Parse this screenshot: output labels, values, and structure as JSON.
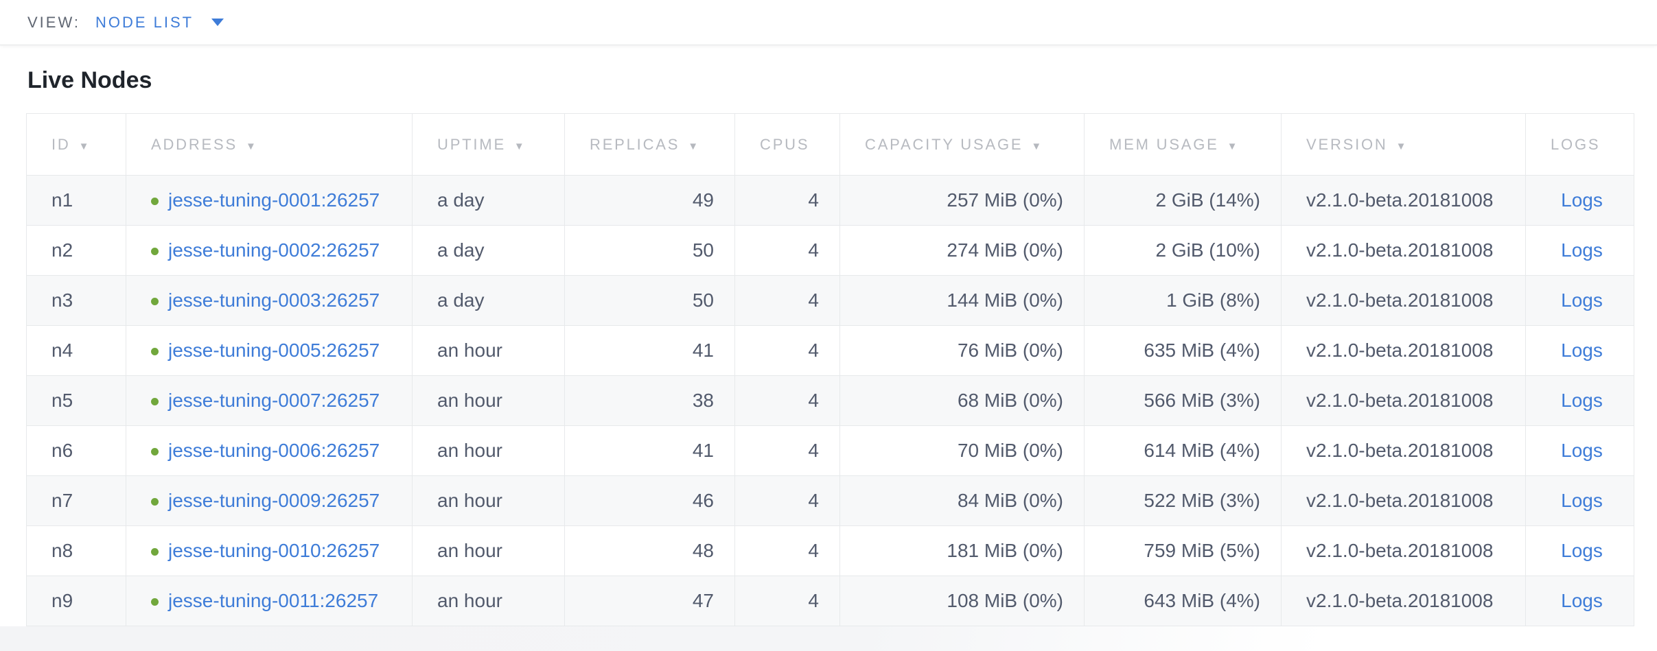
{
  "view_bar": {
    "label": "VIEW:",
    "selected": "NODE LIST"
  },
  "page": {
    "title": "Live Nodes"
  },
  "table": {
    "columns": [
      {
        "label": "ID",
        "key": "id",
        "sortable": true,
        "align": "left",
        "type": "text"
      },
      {
        "label": "ADDRESS",
        "key": "address",
        "sortable": true,
        "align": "left",
        "type": "node_link"
      },
      {
        "label": "UPTIME",
        "key": "uptime",
        "sortable": true,
        "align": "left",
        "type": "text"
      },
      {
        "label": "REPLICAS",
        "key": "replicas",
        "sortable": true,
        "align": "right",
        "type": "text"
      },
      {
        "label": "CPUS",
        "key": "cpus",
        "sortable": false,
        "align": "right",
        "type": "text"
      },
      {
        "label": "CAPACITY USAGE",
        "key": "capacity_usage",
        "sortable": true,
        "align": "right",
        "type": "text"
      },
      {
        "label": "MEM USAGE",
        "key": "mem_usage",
        "sortable": true,
        "align": "right",
        "type": "text"
      },
      {
        "label": "VERSION",
        "key": "version",
        "sortable": true,
        "align": "left",
        "type": "text"
      },
      {
        "label": "LOGS",
        "key": "logs",
        "sortable": false,
        "align": "center",
        "type": "link"
      }
    ],
    "rows": [
      {
        "id": "n1",
        "address": "jesse-tuning-0001:26257",
        "uptime": "a day",
        "replicas": "49",
        "cpus": "4",
        "capacity_usage": "257 MiB (0%)",
        "mem_usage": "2 GiB (14%)",
        "version": "v2.1.0-beta.20181008",
        "logs": "Logs"
      },
      {
        "id": "n2",
        "address": "jesse-tuning-0002:26257",
        "uptime": "a day",
        "replicas": "50",
        "cpus": "4",
        "capacity_usage": "274 MiB (0%)",
        "mem_usage": "2 GiB (10%)",
        "version": "v2.1.0-beta.20181008",
        "logs": "Logs"
      },
      {
        "id": "n3",
        "address": "jesse-tuning-0003:26257",
        "uptime": "a day",
        "replicas": "50",
        "cpus": "4",
        "capacity_usage": "144 MiB (0%)",
        "mem_usage": "1 GiB (8%)",
        "version": "v2.1.0-beta.20181008",
        "logs": "Logs"
      },
      {
        "id": "n4",
        "address": "jesse-tuning-0005:26257",
        "uptime": "an hour",
        "replicas": "41",
        "cpus": "4",
        "capacity_usage": "76 MiB (0%)",
        "mem_usage": "635 MiB (4%)",
        "version": "v2.1.0-beta.20181008",
        "logs": "Logs"
      },
      {
        "id": "n5",
        "address": "jesse-tuning-0007:26257",
        "uptime": "an hour",
        "replicas": "38",
        "cpus": "4",
        "capacity_usage": "68 MiB (0%)",
        "mem_usage": "566 MiB (3%)",
        "version": "v2.1.0-beta.20181008",
        "logs": "Logs"
      },
      {
        "id": "n6",
        "address": "jesse-tuning-0006:26257",
        "uptime": "an hour",
        "replicas": "41",
        "cpus": "4",
        "capacity_usage": "70 MiB (0%)",
        "mem_usage": "614 MiB (4%)",
        "version": "v2.1.0-beta.20181008",
        "logs": "Logs"
      },
      {
        "id": "n7",
        "address": "jesse-tuning-0009:26257",
        "uptime": "an hour",
        "replicas": "46",
        "cpus": "4",
        "capacity_usage": "84 MiB (0%)",
        "mem_usage": "522 MiB (3%)",
        "version": "v2.1.0-beta.20181008",
        "logs": "Logs"
      },
      {
        "id": "n8",
        "address": "jesse-tuning-0010:26257",
        "uptime": "an hour",
        "replicas": "48",
        "cpus": "4",
        "capacity_usage": "181 MiB (0%)",
        "mem_usage": "759 MiB (5%)",
        "version": "v2.1.0-beta.20181008",
        "logs": "Logs"
      },
      {
        "id": "n9",
        "address": "jesse-tuning-0011:26257",
        "uptime": "an hour",
        "replicas": "47",
        "cpus": "4",
        "capacity_usage": "108 MiB (0%)",
        "mem_usage": "643 MiB (4%)",
        "version": "v2.1.0-beta.20181008",
        "logs": "Logs"
      }
    ]
  },
  "colors": {
    "accent_blue": "#3e7cd8",
    "live_green": "#71a73c",
    "header_text_gray": "#b7bac0",
    "body_text_slate": "#525a6c"
  }
}
